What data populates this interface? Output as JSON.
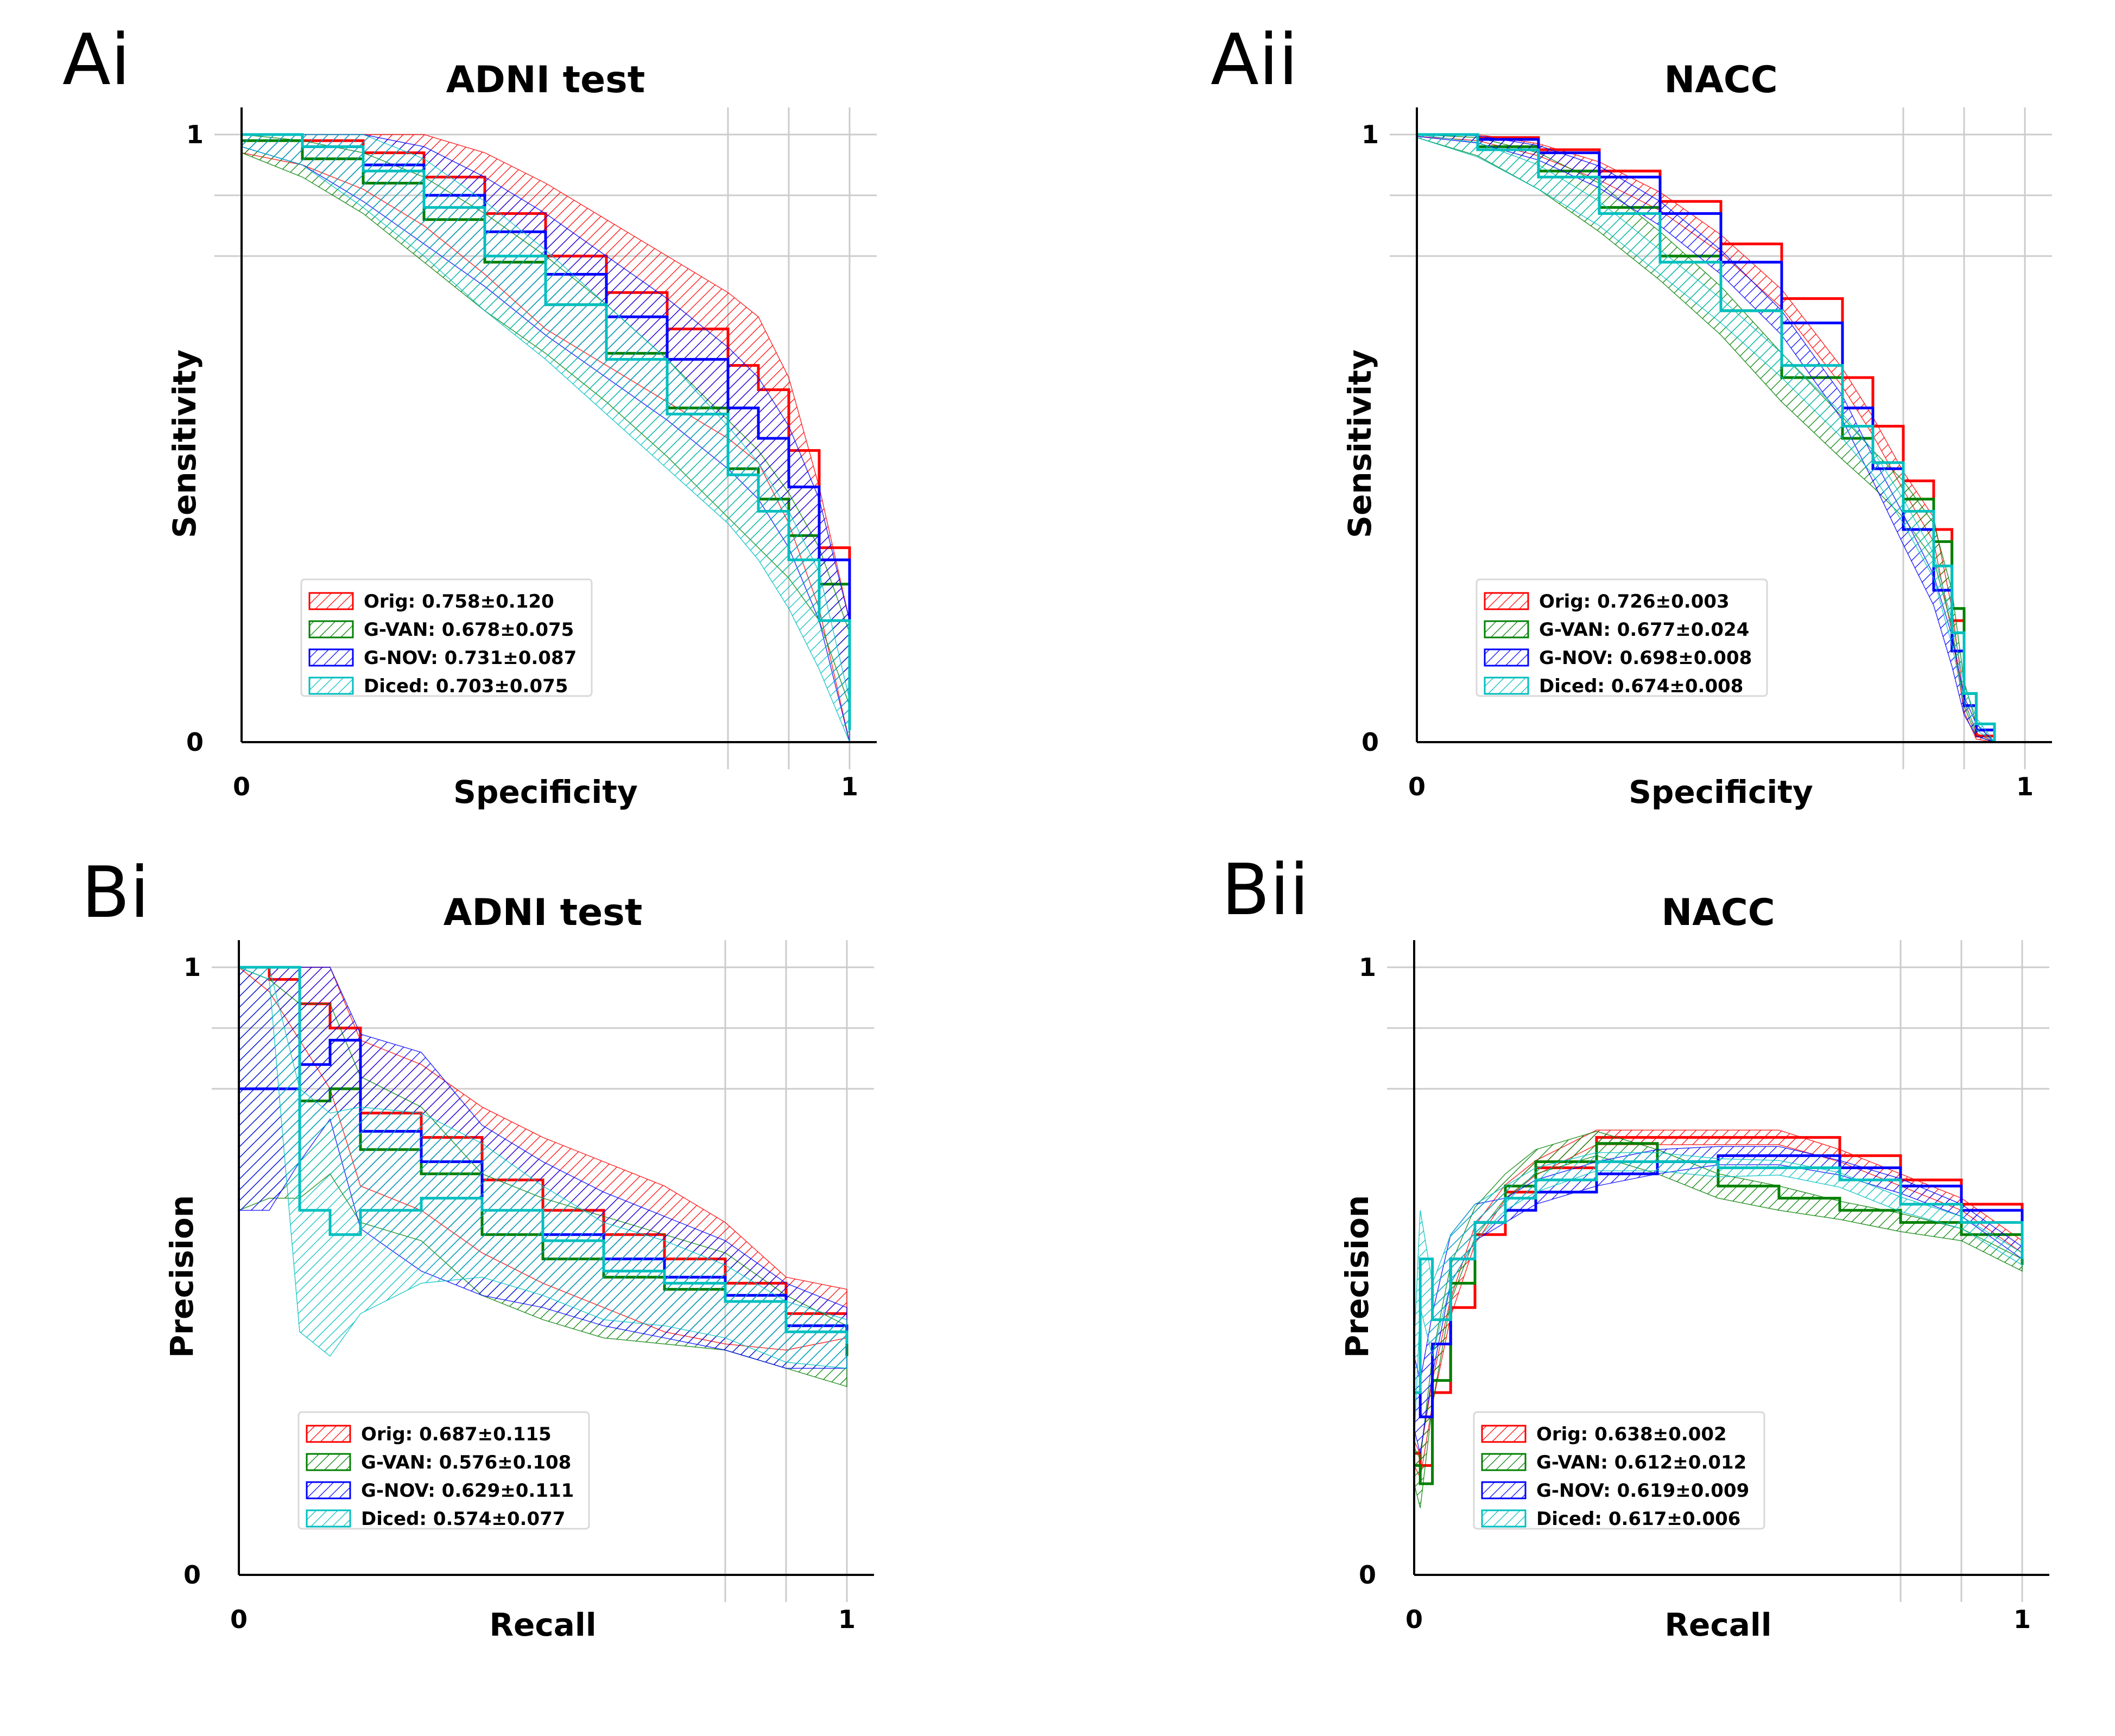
{
  "colors": {
    "Orig": "#ff0000",
    "G-VAN": "#008000",
    "G-NOV": "#0000ff",
    "Diced": "#00bfbf",
    "grid": "#cccccc"
  },
  "chart_data": [
    {
      "panel": "Ai",
      "title": "ADNI test",
      "type": "line",
      "curve": "roc",
      "xlabel": "Specificity",
      "ylabel": "Sensitivity",
      "xlim": [
        0,
        1
      ],
      "ylim": [
        0,
        1
      ],
      "xticks": [
        "0",
        "1"
      ],
      "yticks": [
        "0",
        "1"
      ],
      "grid": true,
      "legend_position": "lower-left",
      "series": [
        {
          "name": "Orig",
          "legend": "Orig: 0.758±0.120",
          "x": [
            0,
            0.1,
            0.2,
            0.3,
            0.4,
            0.5,
            0.6,
            0.7,
            0.8,
            0.85,
            0.9,
            0.95,
            1.0
          ],
          "y": [
            1.0,
            0.99,
            0.97,
            0.93,
            0.87,
            0.8,
            0.74,
            0.68,
            0.62,
            0.58,
            0.48,
            0.32,
            0.1
          ],
          "band": [
            0.03,
            0.04,
            0.06,
            0.08,
            0.1,
            0.12,
            0.12,
            0.12,
            0.12,
            0.12,
            0.12,
            0.1,
            0.1
          ]
        },
        {
          "name": "G-VAN",
          "legend": "G-VAN: 0.678±0.075",
          "x": [
            0,
            0.1,
            0.2,
            0.3,
            0.4,
            0.5,
            0.6,
            0.7,
            0.8,
            0.85,
            0.9,
            0.95,
            1.0
          ],
          "y": [
            0.99,
            0.96,
            0.92,
            0.86,
            0.79,
            0.72,
            0.64,
            0.55,
            0.45,
            0.4,
            0.34,
            0.26,
            0.12
          ],
          "band": [
            0.02,
            0.03,
            0.05,
            0.07,
            0.08,
            0.08,
            0.08,
            0.08,
            0.08,
            0.08,
            0.07,
            0.06,
            0.06
          ]
        },
        {
          "name": "G-NOV",
          "legend": "G-NOV: 0.731±0.087",
          "x": [
            0,
            0.1,
            0.2,
            0.3,
            0.4,
            0.5,
            0.6,
            0.7,
            0.8,
            0.85,
            0.9,
            0.95,
            1.0
          ],
          "y": [
            1.0,
            0.98,
            0.95,
            0.9,
            0.84,
            0.77,
            0.7,
            0.63,
            0.55,
            0.5,
            0.42,
            0.3,
            0.1
          ],
          "band": [
            0.02,
            0.03,
            0.06,
            0.08,
            0.09,
            0.1,
            0.1,
            0.1,
            0.1,
            0.1,
            0.1,
            0.1,
            0.1
          ]
        },
        {
          "name": "Diced",
          "legend": "Diced: 0.703±0.075",
          "x": [
            0,
            0.1,
            0.2,
            0.3,
            0.4,
            0.5,
            0.6,
            0.7,
            0.8,
            0.85,
            0.9,
            0.95,
            1.0
          ],
          "y": [
            1.0,
            0.98,
            0.94,
            0.88,
            0.8,
            0.72,
            0.63,
            0.54,
            0.44,
            0.38,
            0.3,
            0.2,
            0.02
          ],
          "band": [
            0.02,
            0.03,
            0.06,
            0.08,
            0.09,
            0.09,
            0.09,
            0.09,
            0.08,
            0.08,
            0.08,
            0.08,
            0.05
          ]
        }
      ]
    },
    {
      "panel": "Aii",
      "title": "NACC",
      "type": "line",
      "curve": "roc",
      "xlabel": "Specificity",
      "ylabel": "Sensitivity",
      "xlim": [
        0,
        1
      ],
      "ylim": [
        0,
        1
      ],
      "xticks": [
        "0",
        "1"
      ],
      "yticks": [
        "0",
        "1"
      ],
      "grid": true,
      "legend_position": "lower-left",
      "series": [
        {
          "name": "Orig",
          "legend": "Orig: 0.726±0.003",
          "x": [
            0,
            0.1,
            0.2,
            0.3,
            0.4,
            0.5,
            0.6,
            0.7,
            0.75,
            0.8,
            0.85,
            0.88,
            0.9,
            0.92,
            0.95
          ],
          "y": [
            1.0,
            0.995,
            0.975,
            0.94,
            0.89,
            0.82,
            0.73,
            0.6,
            0.52,
            0.43,
            0.35,
            0.2,
            0.06,
            0.01,
            0.0
          ],
          "band": [
            0.003,
            0.005,
            0.01,
            0.015,
            0.015,
            0.015,
            0.015,
            0.015,
            0.015,
            0.015,
            0.02,
            0.02,
            0.01,
            0.005,
            0.0
          ]
        },
        {
          "name": "G-VAN",
          "legend": "G-VAN: 0.677±0.024",
          "x": [
            0,
            0.1,
            0.2,
            0.3,
            0.4,
            0.5,
            0.6,
            0.7,
            0.75,
            0.8,
            0.85,
            0.88,
            0.9,
            0.92,
            0.95
          ],
          "y": [
            1.0,
            0.98,
            0.94,
            0.88,
            0.8,
            0.71,
            0.6,
            0.5,
            0.45,
            0.4,
            0.33,
            0.22,
            0.08,
            0.02,
            0.0
          ],
          "band": [
            0.005,
            0.015,
            0.03,
            0.04,
            0.04,
            0.04,
            0.04,
            0.035,
            0.03,
            0.03,
            0.03,
            0.03,
            0.02,
            0.01,
            0.0
          ]
        },
        {
          "name": "G-NOV",
          "legend": "G-NOV: 0.698±0.008",
          "x": [
            0,
            0.1,
            0.2,
            0.3,
            0.4,
            0.5,
            0.6,
            0.7,
            0.75,
            0.8,
            0.85,
            0.88,
            0.9,
            0.92,
            0.95
          ],
          "y": [
            1.0,
            0.992,
            0.97,
            0.93,
            0.87,
            0.79,
            0.69,
            0.55,
            0.45,
            0.35,
            0.25,
            0.15,
            0.06,
            0.02,
            0.0
          ],
          "band": [
            0.003,
            0.006,
            0.012,
            0.018,
            0.02,
            0.02,
            0.02,
            0.02,
            0.02,
            0.025,
            0.025,
            0.025,
            0.015,
            0.01,
            0.0
          ]
        },
        {
          "name": "Diced",
          "legend": "Diced: 0.674±0.008",
          "x": [
            0,
            0.1,
            0.2,
            0.3,
            0.4,
            0.5,
            0.6,
            0.7,
            0.75,
            0.8,
            0.85,
            0.88,
            0.9,
            0.92,
            0.95
          ],
          "y": [
            1.0,
            0.975,
            0.93,
            0.87,
            0.79,
            0.71,
            0.62,
            0.52,
            0.46,
            0.38,
            0.29,
            0.18,
            0.08,
            0.03,
            0.0
          ],
          "band": [
            0.005,
            0.012,
            0.02,
            0.02,
            0.02,
            0.02,
            0.02,
            0.02,
            0.02,
            0.02,
            0.02,
            0.02,
            0.015,
            0.01,
            0.0
          ]
        }
      ]
    },
    {
      "panel": "Bi",
      "title": "ADNI test",
      "type": "line",
      "curve": "pr",
      "xlabel": "Recall",
      "ylabel": "Precision",
      "xlim": [
        0,
        1
      ],
      "ylim": [
        0,
        1
      ],
      "xticks": [
        "0",
        "1"
      ],
      "yticks": [
        "0",
        "1"
      ],
      "grid": true,
      "legend_position": "lower-left",
      "series": [
        {
          "name": "Orig",
          "legend": "Orig: 0.687±0.115",
          "x": [
            0,
            0.05,
            0.1,
            0.15,
            0.2,
            0.3,
            0.4,
            0.5,
            0.6,
            0.7,
            0.8,
            0.9,
            1.0
          ],
          "y": [
            1.0,
            0.98,
            0.94,
            0.9,
            0.76,
            0.72,
            0.65,
            0.6,
            0.56,
            0.52,
            0.48,
            0.43,
            0.43
          ],
          "band": [
            0.0,
            0.02,
            0.06,
            0.1,
            0.12,
            0.12,
            0.12,
            0.12,
            0.12,
            0.12,
            0.1,
            0.06,
            0.04
          ]
        },
        {
          "name": "G-VAN",
          "legend": "G-VAN: 0.576±0.108",
          "x": [
            0,
            0.05,
            0.1,
            0.15,
            0.2,
            0.3,
            0.4,
            0.5,
            0.6,
            0.7,
            0.8,
            0.9,
            1.0
          ],
          "y": [
            0.8,
            0.8,
            0.78,
            0.8,
            0.7,
            0.66,
            0.56,
            0.52,
            0.49,
            0.47,
            0.45,
            0.4,
            0.36
          ],
          "band": [
            0.2,
            0.18,
            0.16,
            0.14,
            0.12,
            0.11,
            0.1,
            0.1,
            0.1,
            0.09,
            0.08,
            0.06,
            0.05
          ]
        },
        {
          "name": "G-NOV",
          "legend": "G-NOV: 0.629±0.111",
          "x": [
            0,
            0.05,
            0.1,
            0.15,
            0.2,
            0.3,
            0.4,
            0.5,
            0.6,
            0.7,
            0.8,
            0.9,
            1.0
          ],
          "y": [
            0.8,
            0.8,
            0.84,
            0.88,
            0.73,
            0.68,
            0.6,
            0.56,
            0.52,
            0.49,
            0.46,
            0.41,
            0.39
          ],
          "band": [
            0.2,
            0.2,
            0.16,
            0.13,
            0.16,
            0.18,
            0.14,
            0.12,
            0.11,
            0.1,
            0.09,
            0.07,
            0.05
          ]
        },
        {
          "name": "Diced",
          "legend": "Diced: 0.574±0.077",
          "x": [
            0,
            0.05,
            0.1,
            0.15,
            0.2,
            0.3,
            0.4,
            0.5,
            0.6,
            0.7,
            0.8,
            0.9,
            1.0
          ],
          "y": [
            1.0,
            1.0,
            0.6,
            0.56,
            0.6,
            0.62,
            0.6,
            0.55,
            0.5,
            0.48,
            0.45,
            0.4,
            0.38
          ],
          "band": [
            0.0,
            0.02,
            0.2,
            0.2,
            0.17,
            0.14,
            0.11,
            0.09,
            0.08,
            0.07,
            0.06,
            0.05,
            0.04
          ]
        }
      ]
    },
    {
      "panel": "Bii",
      "title": "NACC",
      "type": "line",
      "curve": "pr",
      "xlabel": "Recall",
      "ylabel": "Precision",
      "xlim": [
        0,
        1
      ],
      "ylim": [
        0,
        1
      ],
      "xticks": [
        "0",
        "1"
      ],
      "yticks": [
        "0",
        "1"
      ],
      "grid": true,
      "legend_position": "lower-left",
      "series": [
        {
          "name": "Orig",
          "legend": "Orig: 0.638±0.002",
          "x": [
            0,
            0.01,
            0.03,
            0.06,
            0.1,
            0.15,
            0.2,
            0.3,
            0.4,
            0.5,
            0.6,
            0.7,
            0.8,
            0.9,
            1.0
          ],
          "y": [
            0.2,
            0.18,
            0.3,
            0.44,
            0.56,
            0.63,
            0.67,
            0.72,
            0.72,
            0.72,
            0.72,
            0.69,
            0.65,
            0.61,
            0.54
          ],
          "band": [
            0.02,
            0.02,
            0.02,
            0.015,
            0.015,
            0.012,
            0.012,
            0.012,
            0.012,
            0.012,
            0.012,
            0.01,
            0.01,
            0.01,
            0.01
          ]
        },
        {
          "name": "G-VAN",
          "legend": "G-VAN: 0.612±0.012",
          "x": [
            0,
            0.01,
            0.03,
            0.06,
            0.1,
            0.15,
            0.2,
            0.3,
            0.4,
            0.5,
            0.6,
            0.7,
            0.8,
            0.9,
            1.0
          ],
          "y": [
            0.18,
            0.15,
            0.32,
            0.48,
            0.58,
            0.64,
            0.68,
            0.71,
            0.68,
            0.64,
            0.62,
            0.6,
            0.58,
            0.56,
            0.51
          ],
          "band": [
            0.03,
            0.04,
            0.04,
            0.03,
            0.025,
            0.02,
            0.02,
            0.02,
            0.02,
            0.02,
            0.02,
            0.015,
            0.015,
            0.01,
            0.01
          ]
        },
        {
          "name": "G-NOV",
          "legend": "G-NOV: 0.619±0.009",
          "x": [
            0,
            0.01,
            0.03,
            0.06,
            0.1,
            0.15,
            0.2,
            0.3,
            0.4,
            0.5,
            0.6,
            0.7,
            0.8,
            0.9,
            1.0
          ],
          "y": [
            0.3,
            0.26,
            0.38,
            0.52,
            0.58,
            0.6,
            0.63,
            0.66,
            0.68,
            0.69,
            0.69,
            0.67,
            0.64,
            0.6,
            0.53
          ],
          "band": [
            0.06,
            0.06,
            0.05,
            0.04,
            0.03,
            0.02,
            0.02,
            0.02,
            0.02,
            0.015,
            0.015,
            0.012,
            0.012,
            0.01,
            0.01
          ]
        },
        {
          "name": "Diced",
          "legend": "Diced: 0.617±0.006",
          "x": [
            0,
            0.01,
            0.03,
            0.06,
            0.1,
            0.15,
            0.2,
            0.3,
            0.4,
            0.5,
            0.6,
            0.7,
            0.8,
            0.9,
            1.0
          ],
          "y": [
            0.3,
            0.52,
            0.42,
            0.52,
            0.58,
            0.62,
            0.65,
            0.68,
            0.68,
            0.67,
            0.67,
            0.65,
            0.61,
            0.58,
            0.52
          ],
          "band": [
            0.08,
            0.08,
            0.06,
            0.04,
            0.03,
            0.02,
            0.02,
            0.015,
            0.015,
            0.015,
            0.012,
            0.012,
            0.012,
            0.01,
            0.01
          ]
        }
      ]
    }
  ]
}
